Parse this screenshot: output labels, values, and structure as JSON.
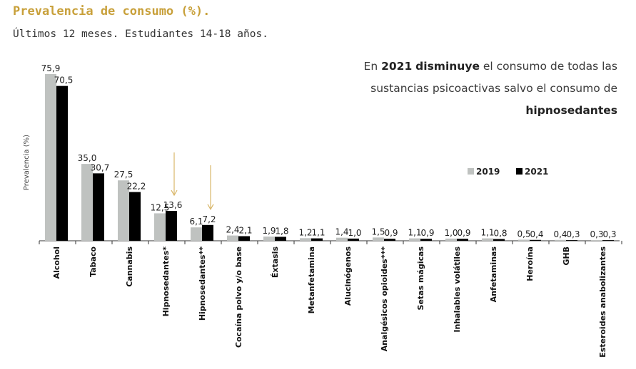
{
  "header": {
    "title": "Prevalencia de consumo (%).",
    "subtitle": "Últimos 12 meses. Estudiantes 14-18 años."
  },
  "annotation": {
    "line1_prefix": "En ",
    "year": "2021",
    "verb": "disminuye",
    "line1_suffix": " el consumo de todas las",
    "line2": "sustancias psicoactivas salvo el consumo de",
    "highlight": "hipnosedantes"
  },
  "colors": {
    "series_2019": "#bfc2c0",
    "series_2021": "#000000",
    "title": "#c8a03a",
    "arrow": "#d9b76a"
  },
  "chart_data": {
    "type": "bar",
    "title": "",
    "xlabel": "",
    "ylabel": "Prevalencia (%)",
    "ylim": [
      0,
      80
    ],
    "grid": false,
    "legend_position": "right",
    "categories": [
      "Alcohol",
      "Tabaco",
      "Cannabis",
      "Hipnosedantes*",
      "Hipnosedantes**",
      "Cocaína polvo y/o base",
      "Éxtasis",
      "Metanfetamina",
      "Alucinógenos",
      "Analgésicos opioides***",
      "Setas mágicas",
      "Inhalables volátiles",
      "Anfetaminas",
      "Heroína",
      "GHB",
      "Esteroides anabolizantes"
    ],
    "series": [
      {
        "name": "2019",
        "values": [
          75.9,
          35.0,
          27.5,
          12.5,
          6.1,
          2.4,
          1.9,
          1.2,
          1.4,
          1.5,
          1.1,
          1.0,
          1.1,
          0.5,
          0.4,
          0.3
        ],
        "labels": [
          "75,9",
          "35,0",
          "27,5",
          "12,5",
          "6,1",
          "2,4",
          "1,9",
          "1,2",
          "1,4",
          "1,5",
          "1,1",
          "1,0",
          "1,1",
          "0,5",
          "0,4",
          "0,3"
        ]
      },
      {
        "name": "2021",
        "values": [
          70.5,
          30.7,
          22.2,
          13.6,
          7.2,
          2.1,
          1.8,
          1.1,
          1.0,
          0.9,
          0.9,
          0.9,
          0.8,
          0.4,
          0.3,
          0.3
        ],
        "labels": [
          "70,5",
          "30,7",
          "22,2",
          "13,6",
          "7,2",
          "2,1",
          "1,8",
          "1,1",
          "1,0",
          "0,9",
          "0,9",
          "0,9",
          "0,8",
          "0,4",
          "0,3",
          "0,3"
        ]
      }
    ],
    "highlighted_categories": [
      "Hipnosedantes*",
      "Hipnosedantes**"
    ]
  }
}
